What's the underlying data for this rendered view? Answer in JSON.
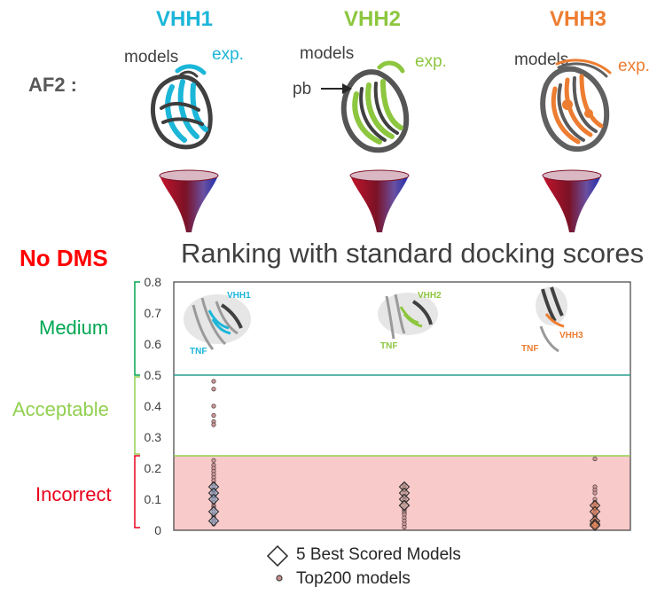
{
  "header": {
    "method_label": "AF2 :",
    "nanobodies": [
      {
        "name": "VHH1",
        "color": "#1bb6d8",
        "models_label": "models",
        "exp_label": "exp."
      },
      {
        "name": "VHH2",
        "color": "#8dc63f",
        "models_label": "models",
        "exp_label": "exp.",
        "pb_label": "pb"
      },
      {
        "name": "VHH3",
        "color": "#ed7d31",
        "models_label": "models",
        "exp_label": "exp."
      }
    ]
  },
  "no_dms_label": "No DMS",
  "categories": [
    {
      "label": "Medium",
      "color": "#00a651",
      "range": [
        0.5,
        0.8
      ]
    },
    {
      "label": "Acceptable",
      "color": "#92d050",
      "range": [
        0.24,
        0.5
      ]
    },
    {
      "label": "Incorrect",
      "color": "#e8001c",
      "range": [
        0,
        0.24
      ]
    }
  ],
  "complex_labels": {
    "tnf": "TNF"
  },
  "legend": {
    "best": "5 Best Scored Models",
    "top200": "Top200 models"
  },
  "chart_data": {
    "type": "scatter",
    "title": "Ranking with standard docking scores",
    "ylim": [
      0,
      0.8
    ],
    "yticks": [
      "0",
      "0.1",
      "0.2",
      "0.3",
      "0.4",
      "0.5",
      "0.6",
      "0.7",
      "0.8"
    ],
    "threshold_lines": [
      0.5,
      0.24
    ],
    "incorrect_band": [
      0,
      0.24
    ],
    "incorrect_band_color": "#f8caca",
    "categories": [
      "VHH1",
      "VHH2",
      "VHH3"
    ],
    "series": [
      {
        "name": "Top200 models",
        "points": {
          "VHH1": [
            0.48,
            0.455,
            0.4,
            0.37,
            0.35,
            0.34,
            0.225,
            0.21,
            0.2,
            0.19,
            0.18,
            0.17,
            0.16,
            0.15,
            0.145,
            0.14,
            0.13,
            0.12,
            0.115,
            0.11,
            0.1,
            0.09,
            0.08,
            0.075,
            0.07,
            0.06,
            0.05,
            0.045,
            0.04,
            0.03,
            0.025,
            0.02
          ],
          "VHH2": [
            0.145,
            0.14,
            0.135,
            0.13,
            0.12,
            0.11,
            0.1,
            0.095,
            0.09,
            0.085,
            0.08,
            0.07,
            0.065,
            0.06,
            0.055,
            0.05,
            0.04,
            0.03,
            0.02,
            0.01
          ],
          "VHH3": [
            0.23,
            0.14,
            0.13,
            0.12,
            0.1,
            0.09,
            0.085,
            0.08,
            0.075,
            0.07,
            0.06,
            0.055,
            0.05,
            0.045,
            0.04,
            0.035,
            0.03,
            0.025,
            0.02,
            0.015,
            0.01
          ]
        }
      },
      {
        "name": "5 Best Scored Models",
        "points": {
          "VHH1": [
            0.14,
            0.12,
            0.1,
            0.06,
            0.03
          ],
          "VHH2": [
            0.14,
            0.12,
            0.1,
            0.08,
            0.08
          ],
          "VHH3": [
            0.08,
            0.06,
            0.03,
            0.02,
            0.015
          ]
        }
      }
    ]
  }
}
